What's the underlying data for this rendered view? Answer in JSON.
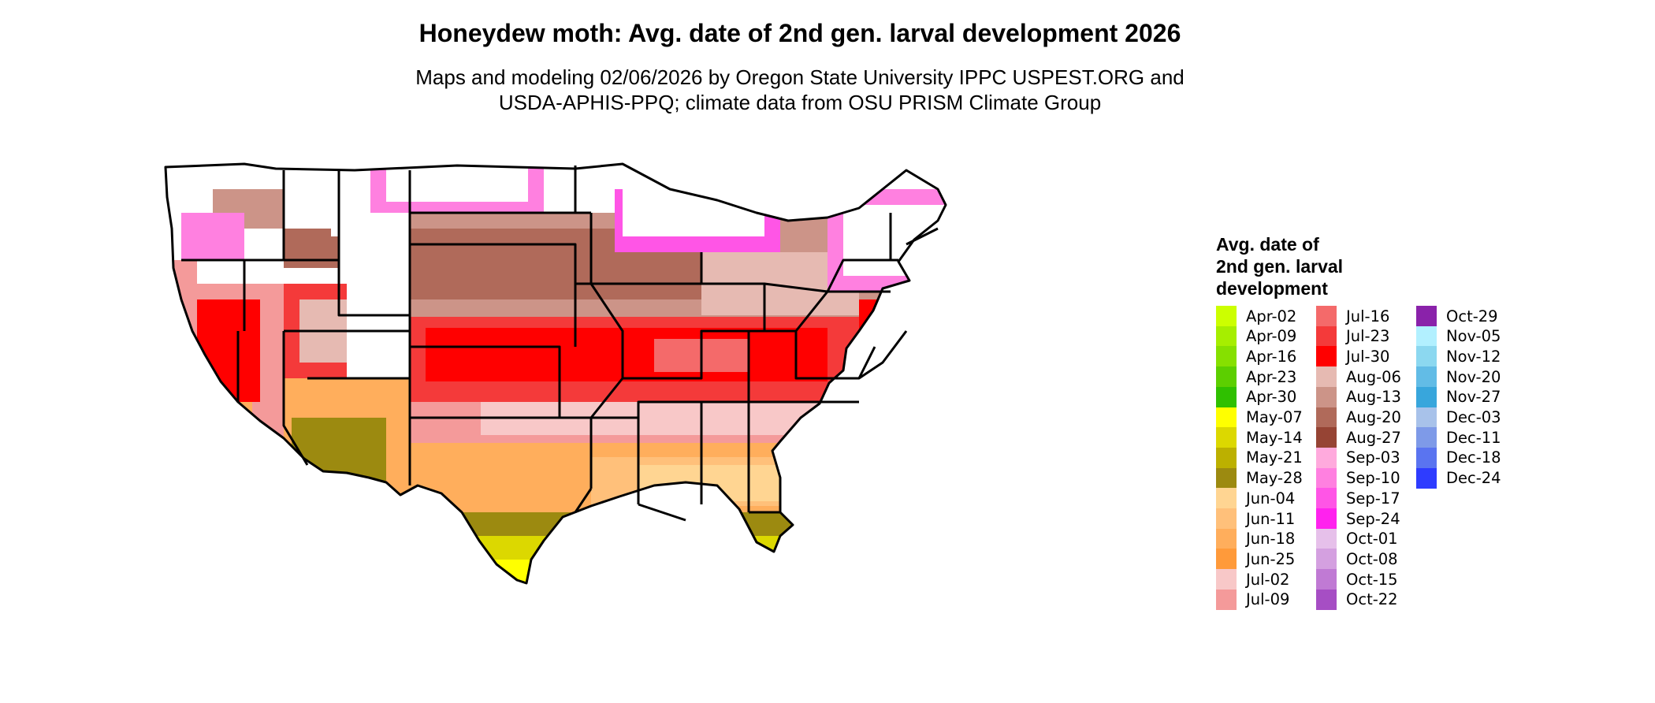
{
  "title": "Honeydew moth: Avg. date of 2nd gen. larval development 2026",
  "subtitle": {
    "line1": "Maps and modeling 02/06/2026 by Oregon State University IPPC USPEST.ORG and",
    "line2": "USDA-APHIS-PPQ; climate data from OSU PRISM Climate Group"
  },
  "legend": {
    "title_lines": [
      "Avg. date of",
      "2nd gen. larval",
      "development"
    ],
    "columns": [
      [
        {
          "label": "Apr-02",
          "color": "#ccff00"
        },
        {
          "label": "Apr-09",
          "color": "#a6ee00"
        },
        {
          "label": "Apr-16",
          "color": "#86e000"
        },
        {
          "label": "Apr-23",
          "color": "#5ccf00"
        },
        {
          "label": "Apr-30",
          "color": "#2fc000"
        },
        {
          "label": "May-07",
          "color": "#ffff00"
        },
        {
          "label": "May-14",
          "color": "#dcd800"
        },
        {
          "label": "May-21",
          "color": "#bcb000"
        },
        {
          "label": "May-28",
          "color": "#9c8a10"
        },
        {
          "label": "Jun-04",
          "color": "#ffd592"
        },
        {
          "label": "Jun-11",
          "color": "#ffc07a"
        },
        {
          "label": "Jun-18",
          "color": "#ffae5c"
        },
        {
          "label": "Jun-25",
          "color": "#ff9a3a"
        },
        {
          "label": "Jul-02",
          "color": "#f8c8c8"
        },
        {
          "label": "Jul-09",
          "color": "#f49a9a"
        }
      ],
      [
        {
          "label": "Jul-16",
          "color": "#f46a6a"
        },
        {
          "label": "Jul-23",
          "color": "#f43a3a"
        },
        {
          "label": "Jul-30",
          "color": "#ff0000"
        },
        {
          "label": "Aug-06",
          "color": "#e6bab2"
        },
        {
          "label": "Aug-13",
          "color": "#cc9488"
        },
        {
          "label": "Aug-20",
          "color": "#b06a5a"
        },
        {
          "label": "Aug-27",
          "color": "#964434"
        },
        {
          "label": "Sep-03",
          "color": "#ffaadd"
        },
        {
          "label": "Sep-10",
          "color": "#ff80e0"
        },
        {
          "label": "Sep-17",
          "color": "#ff55e6"
        },
        {
          "label": "Sep-24",
          "color": "#ff22ee"
        },
        {
          "label": "Oct-01",
          "color": "#e6c0ea"
        },
        {
          "label": "Oct-08",
          "color": "#d4a0e0"
        },
        {
          "label": "Oct-15",
          "color": "#c07ad4"
        },
        {
          "label": "Oct-22",
          "color": "#a64ec4"
        }
      ],
      [
        {
          "label": "Oct-29",
          "color": "#8a22aa"
        },
        {
          "label": "Nov-05",
          "color": "#b2f0ff"
        },
        {
          "label": "Nov-12",
          "color": "#8cd8f0"
        },
        {
          "label": "Nov-20",
          "color": "#62bce6"
        },
        {
          "label": "Nov-27",
          "color": "#38a6dc"
        },
        {
          "label": "Dec-03",
          "color": "#a8c2ea"
        },
        {
          "label": "Dec-11",
          "color": "#7e9ae8"
        },
        {
          "label": "Dec-18",
          "color": "#5a74f0"
        },
        {
          "label": "Dec-24",
          "color": "#2e3cff"
        }
      ]
    ]
  },
  "map_colors": {
    "outline": "#000000",
    "land_white": "#ffffff"
  }
}
